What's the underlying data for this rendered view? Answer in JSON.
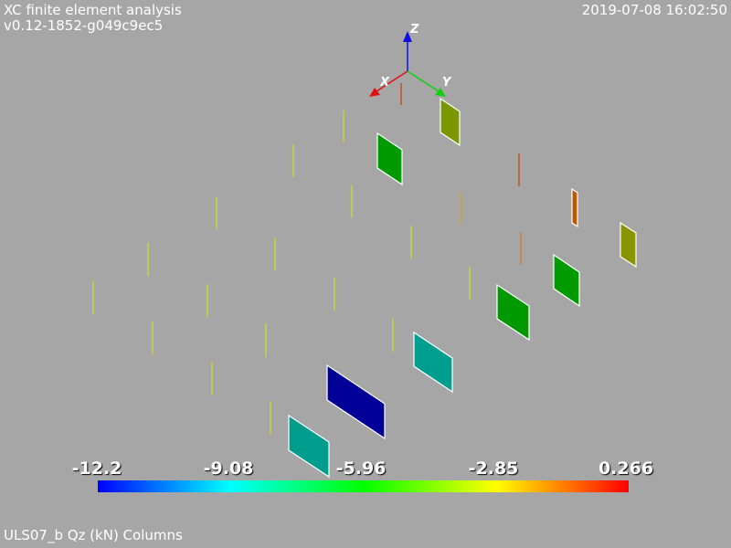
{
  "header": {
    "title": "XC finite element analysis",
    "version": "v0.12-1852-g049c9ec5",
    "timestamp": "2019-07-08 16:02:50"
  },
  "footer": {
    "caption": "ULS07_b Qz (kN) Columns"
  },
  "axes": {
    "x_label": "X",
    "y_label": "Y",
    "z_label": "Z",
    "x_color": "#e01010",
    "y_color": "#10d010",
    "z_color": "#1010e0"
  },
  "colorbar": {
    "ticks": [
      "-12.2",
      "-9.08",
      "-5.96",
      "-2.85",
      "0.266"
    ],
    "min": -12.2,
    "max": 0.266,
    "gradient": [
      "#0000ff",
      "#00ffff",
      "#00ff00",
      "#ffff00",
      "#ff0000"
    ]
  },
  "elements": [
    {
      "value": -12.2,
      "color": "#000099"
    },
    {
      "value": -7.6,
      "color": "#009c8c"
    },
    {
      "value": -7.4,
      "color": "#009e8e"
    },
    {
      "value": -4.9,
      "color": "#009900"
    },
    {
      "value": -4.8,
      "color": "#009a00"
    },
    {
      "value": -4.7,
      "color": "#009b00"
    },
    {
      "value": -2.4,
      "color": "#7a9600"
    },
    {
      "value": -2.3,
      "color": "#8a9400"
    },
    {
      "value": -0.9,
      "color": "#b85a00"
    }
  ]
}
